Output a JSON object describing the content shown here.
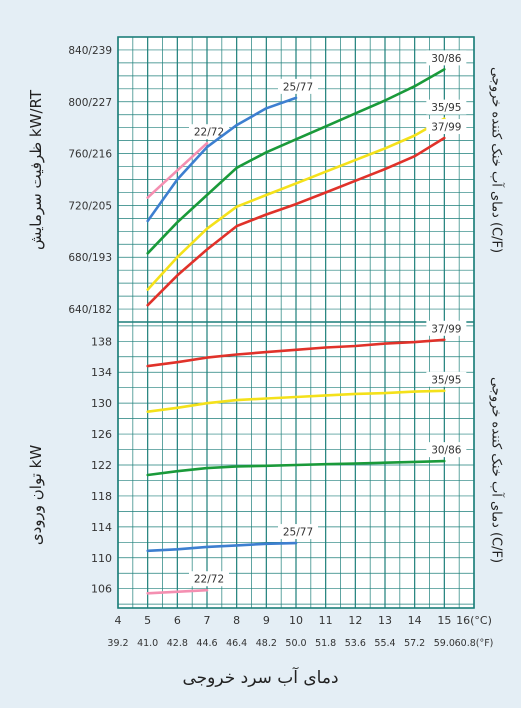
{
  "chart_data": [
    {
      "type": "line",
      "ylabel": "ظرفیت سرمایش kW/RT",
      "right_label": "دمای آب خنک کننده خروجی (C/F)",
      "yticks": [
        "640/182",
        "680/193",
        "720/205",
        "760/216",
        "800/227",
        "840/239"
      ],
      "ylim": [
        630,
        850
      ],
      "series": [
        {
          "name": "22/72",
          "color": "#f48fb1",
          "x": [
            5,
            7
          ],
          "values": [
            726,
            768
          ]
        },
        {
          "name": "25/77",
          "color": "#3d7fd0",
          "x": [
            5,
            6,
            7,
            8,
            9,
            10
          ],
          "values": [
            708,
            740,
            765,
            782,
            795,
            803
          ]
        },
        {
          "name": "30/86",
          "color": "#1a9a3a",
          "x": [
            5,
            6,
            7,
            8,
            9,
            10,
            11,
            12,
            13,
            14,
            15
          ],
          "values": [
            683,
            707,
            728,
            749,
            761,
            771,
            781,
            791,
            801,
            812,
            825
          ]
        },
        {
          "name": "35/95",
          "color": "#f4e11a",
          "x": [
            5,
            6,
            7,
            8,
            9,
            10,
            11,
            12,
            13,
            14,
            15
          ],
          "values": [
            655,
            680,
            702,
            719,
            728,
            737,
            746,
            755,
            764,
            774,
            787
          ]
        },
        {
          "name": "37/99",
          "color": "#e0322a",
          "x": [
            5,
            6,
            7,
            8,
            9,
            10,
            11,
            12,
            13,
            14,
            15
          ],
          "values": [
            643,
            666,
            686,
            704,
            713,
            721,
            730,
            739,
            748,
            758,
            772
          ]
        }
      ]
    },
    {
      "type": "line",
      "ylabel": "توان ورودی kW",
      "right_label": "دمای آب خنک کننده خروجی (C/F)",
      "yticks": [
        "106",
        "110",
        "114",
        "118",
        "122",
        "126",
        "130",
        "134",
        "138"
      ],
      "ylim": [
        103.5,
        140.5
      ],
      "series": [
        {
          "name": "37/99",
          "color": "#e0322a",
          "x": [
            5,
            6,
            7,
            8,
            9,
            10,
            11,
            12,
            13,
            14,
            15
          ],
          "values": [
            134.8,
            135.3,
            135.9,
            136.3,
            136.6,
            136.9,
            137.2,
            137.4,
            137.7,
            137.9,
            138.2
          ]
        },
        {
          "name": "35/95",
          "color": "#f4e11a",
          "x": [
            5,
            6,
            7,
            8,
            9,
            10,
            11,
            12,
            13,
            14,
            15
          ],
          "values": [
            128.9,
            129.4,
            130.0,
            130.4,
            130.6,
            130.8,
            131.0,
            131.2,
            131.3,
            131.5,
            131.6
          ]
        },
        {
          "name": "30/86",
          "color": "#1a9a3a",
          "x": [
            5,
            6,
            7,
            8,
            9,
            10,
            11,
            12,
            13,
            14,
            15
          ],
          "values": [
            120.7,
            121.2,
            121.6,
            121.8,
            121.9,
            122.0,
            122.1,
            122.2,
            122.3,
            122.4,
            122.5
          ]
        },
        {
          "name": "25/77",
          "color": "#3d7fd0",
          "x": [
            5,
            6,
            7,
            8,
            9,
            10
          ],
          "values": [
            110.9,
            111.1,
            111.4,
            111.6,
            111.8,
            111.9
          ]
        },
        {
          "name": "22/72",
          "color": "#f48fb1",
          "x": [
            5,
            7
          ],
          "values": [
            105.4,
            105.8
          ]
        }
      ]
    }
  ],
  "xaxis": {
    "celsius_ticks": [
      "4",
      "5",
      "6",
      "7",
      "8",
      "9",
      "10",
      "11",
      "12",
      "13",
      "14",
      "15",
      "16(°C)"
    ],
    "fahrenheit_ticks": [
      "39.2",
      "41.0",
      "42.8",
      "44.6",
      "46.4",
      "48.2",
      "50.0",
      "51.8",
      "53.6",
      "55.4",
      "57.2",
      "59.0",
      "60.8(°F)"
    ],
    "xlim": [
      4,
      16
    ],
    "xlabel": "دمای آب سرد خروجی"
  },
  "colors": {
    "grid": "#1d7f7a",
    "panel": "#ffffff",
    "background": "#e4eef5"
  }
}
